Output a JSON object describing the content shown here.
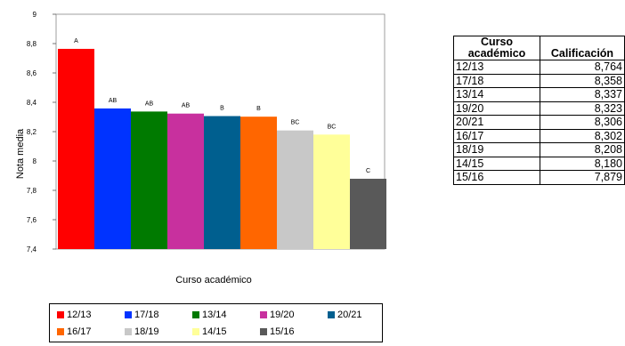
{
  "chart_data": {
    "type": "bar",
    "xlabel": "Curso académico",
    "ylabel": "Nota media",
    "ylim": [
      7.4,
      9
    ],
    "yticks": [
      "7,4",
      "7,6",
      "7,8",
      "8",
      "8,2",
      "8,4",
      "8,6",
      "8,8",
      "9"
    ],
    "grid": false,
    "legend_position": "bottom",
    "categories": [
      "12/13",
      "17/18",
      "13/14",
      "19/20",
      "20/21",
      "16/17",
      "18/19",
      "14/15",
      "15/16"
    ],
    "values": [
      8.764,
      8.358,
      8.337,
      8.323,
      8.306,
      8.302,
      8.208,
      8.18,
      7.879
    ],
    "group_labels": [
      "A",
      "AB",
      "AB",
      "AB",
      "B",
      "B",
      "BC",
      "BC",
      "C"
    ],
    "colors": [
      "#ff0000",
      "#0033ff",
      "#007a00",
      "#c8309e",
      "#005f8f",
      "#ff6600",
      "#c8c8c8",
      "#ffff99",
      "#595959"
    ]
  },
  "table": {
    "headers": [
      "Curso académico",
      "Calificación"
    ],
    "rows": [
      [
        "12/13",
        "8,764"
      ],
      [
        "17/18",
        "8,358"
      ],
      [
        "13/14",
        "8,337"
      ],
      [
        "19/20",
        "8,323"
      ],
      [
        "20/21",
        "8,306"
      ],
      [
        "16/17",
        "8,302"
      ],
      [
        "18/19",
        "8,208"
      ],
      [
        "14/15",
        "8,180"
      ],
      [
        "15/16",
        "7,879"
      ]
    ]
  }
}
